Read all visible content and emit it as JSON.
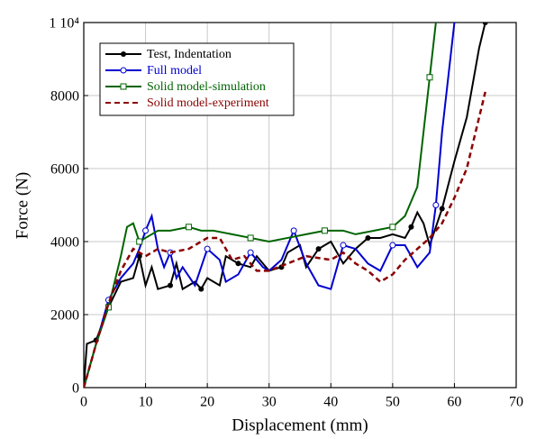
{
  "chart_data": {
    "type": "line",
    "xlabel": "Displacement (mm)",
    "ylabel": "Force (N)",
    "xlim": [
      0,
      70
    ],
    "xticks": [
      0,
      10,
      20,
      30,
      40,
      50,
      60,
      70
    ],
    "ylim": [
      0,
      10000
    ],
    "yticks": [
      0,
      2000,
      4000,
      6000,
      8000,
      {
        "value": 10000,
        "label": "1 10⁴"
      }
    ],
    "grid": true,
    "legend": "upper-left",
    "series": [
      {
        "name": "Test, Indentation",
        "color": "#000000",
        "marker": "filled-circle",
        "style": "solid",
        "x": [
          0,
          0.5,
          2,
          4,
          6,
          8,
          9,
          10,
          11,
          12,
          14,
          15,
          16,
          18,
          19,
          20,
          22,
          23,
          25,
          27,
          28,
          30,
          32,
          33,
          35,
          36,
          38,
          40,
          42,
          44,
          46,
          48,
          50,
          52,
          53,
          54,
          55,
          56,
          58,
          60,
          62,
          64,
          65
        ],
        "values": [
          0,
          1200,
          1300,
          2200,
          2900,
          3000,
          3600,
          2800,
          3300,
          2700,
          2800,
          3400,
          2700,
          2900,
          2700,
          3000,
          2800,
          3600,
          3400,
          3300,
          3600,
          3200,
          3300,
          3700,
          3900,
          3300,
          3800,
          4000,
          3400,
          3800,
          4100,
          4100,
          4200,
          4100,
          4400,
          4800,
          4500,
          3900,
          4900,
          6200,
          7400,
          9300,
          10000
        ]
      },
      {
        "name": "Full model",
        "color": "#0000d0",
        "marker": "circle",
        "style": "solid",
        "x": [
          0,
          2,
          4,
          6,
          8,
          9,
          10,
          11,
          12,
          13,
          14,
          15,
          16,
          18,
          20,
          22,
          23,
          25,
          27,
          29,
          30,
          32,
          34,
          36,
          38,
          40,
          42,
          44,
          46,
          48,
          50,
          52,
          54,
          56,
          57,
          58,
          59,
          60
        ],
        "values": [
          0,
          1200,
          2400,
          3000,
          3400,
          3800,
          4300,
          4700,
          3800,
          3300,
          3700,
          3000,
          3300,
          2800,
          3800,
          3500,
          2900,
          3100,
          3700,
          3300,
          3200,
          3500,
          4300,
          3400,
          2800,
          2700,
          3900,
          3800,
          3400,
          3200,
          3900,
          3900,
          3300,
          3700,
          5000,
          7000,
          8500,
          10000
        ]
      },
      {
        "name": "Solid model-simulation",
        "color": "#006400",
        "marker": "square",
        "style": "solid",
        "x": [
          0,
          2,
          4,
          6,
          7,
          8,
          9,
          10,
          12,
          14,
          17,
          19,
          21,
          24,
          27,
          30,
          33,
          36,
          39,
          42,
          44,
          47,
          50,
          52,
          54,
          55,
          56,
          57
        ],
        "values": [
          0,
          1200,
          2200,
          3600,
          4400,
          4500,
          4000,
          4100,
          4300,
          4300,
          4400,
          4300,
          4300,
          4200,
          4100,
          4000,
          4100,
          4200,
          4300,
          4300,
          4200,
          4300,
          4400,
          4700,
          5500,
          7000,
          8500,
          10000
        ]
      },
      {
        "name": "Solid model-experiment",
        "color": "#8b0000",
        "marker": "none",
        "style": "dashed",
        "x": [
          0,
          2,
          4,
          6,
          8,
          10,
          12,
          14,
          17,
          20,
          22,
          24,
          26,
          28,
          30,
          33,
          36,
          40,
          42,
          44,
          46,
          48,
          50,
          52,
          54,
          56,
          58,
          60,
          62,
          64,
          65
        ],
        "values": [
          0,
          1200,
          2300,
          3200,
          3800,
          3600,
          3800,
          3700,
          3800,
          4100,
          4100,
          3500,
          3600,
          3200,
          3200,
          3400,
          3600,
          3500,
          3700,
          3400,
          3200,
          2900,
          3100,
          3500,
          3800,
          4100,
          4500,
          5200,
          6000,
          7400,
          8100
        ]
      }
    ]
  }
}
